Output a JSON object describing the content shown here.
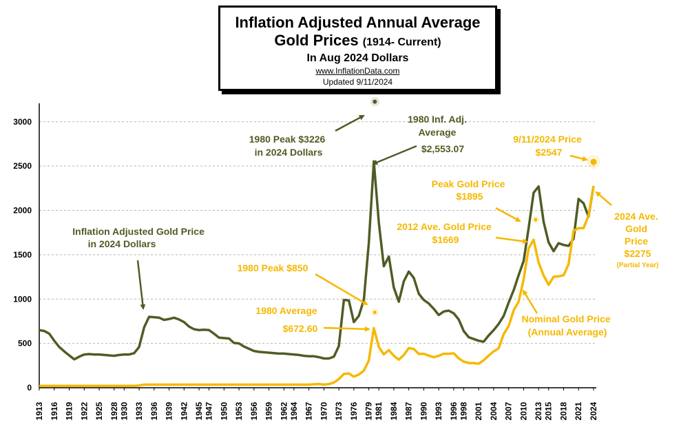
{
  "title": {
    "line1": "Inflation Adjusted Annual Average",
    "line2_main": "Gold Prices",
    "line2_paren": "(1914- Current)",
    "line3": "In Aug 2024 Dollars",
    "website": "www.InflationData.com",
    "updated": "Updated 9/11/2024"
  },
  "colors": {
    "adjusted": "#4e5d24",
    "nominal": "#f5b800",
    "grid": "#b5b5b5"
  },
  "chart_data": {
    "type": "line",
    "xlim": [
      1913,
      2024
    ],
    "ylim": [
      0,
      3200
    ],
    "yticks": [
      0,
      500,
      1000,
      1500,
      2000,
      2500,
      3000
    ],
    "xticks": [
      1913,
      1916,
      1919,
      1922,
      1925,
      1928,
      1930,
      1933,
      1936,
      1939,
      1942,
      1945,
      1947,
      1950,
      1953,
      1956,
      1959,
      1962,
      1964,
      1967,
      1970,
      1973,
      1976,
      1979,
      1981,
      1984,
      1987,
      1990,
      1993,
      1996,
      1998,
      2001,
      2004,
      2007,
      2010,
      2013,
      2015,
      2018,
      2021,
      2024
    ],
    "grid": true,
    "series": [
      {
        "key": "adjusted",
        "x": [
          1913,
          1914,
          1915,
          1916,
          1917,
          1918,
          1919,
          1920,
          1921,
          1922,
          1923,
          1924,
          1925,
          1926,
          1927,
          1928,
          1929,
          1930,
          1931,
          1932,
          1933,
          1934,
          1935,
          1936,
          1937,
          1938,
          1939,
          1940,
          1941,
          1942,
          1943,
          1944,
          1945,
          1946,
          1947,
          1948,
          1949,
          1950,
          1951,
          1952,
          1953,
          1954,
          1955,
          1956,
          1957,
          1958,
          1959,
          1960,
          1961,
          1962,
          1963,
          1964,
          1965,
          1966,
          1967,
          1968,
          1969,
          1970,
          1971,
          1972,
          1973,
          1974,
          1975,
          1976,
          1977,
          1978,
          1979,
          1980,
          1981,
          1982,
          1983,
          1984,
          1985,
          1986,
          1987,
          1988,
          1989,
          1990,
          1991,
          1992,
          1993,
          1994,
          1995,
          1996,
          1997,
          1998,
          1999,
          2000,
          2001,
          2002,
          2003,
          2004,
          2005,
          2006,
          2007,
          2008,
          2009,
          2010,
          2011,
          2012,
          2013,
          2014,
          2015,
          2016,
          2017,
          2018,
          2019,
          2020,
          2021,
          2022,
          2023,
          2024
        ],
        "y": [
          650,
          640,
          610,
          530,
          460,
          410,
          365,
          320,
          350,
          375,
          380,
          375,
          375,
          370,
          365,
          360,
          370,
          375,
          375,
          390,
          460,
          680,
          800,
          795,
          790,
          765,
          775,
          790,
          770,
          740,
          690,
          660,
          650,
          655,
          650,
          610,
          565,
          560,
          555,
          505,
          500,
          465,
          440,
          415,
          405,
          400,
          395,
          390,
          385,
          385,
          380,
          375,
          370,
          360,
          355,
          355,
          345,
          330,
          330,
          350,
          470,
          990,
          985,
          740,
          810,
          990,
          1630,
          2553,
          1860,
          1370,
          1480,
          1130,
          970,
          1200,
          1310,
          1240,
          1060,
          990,
          950,
          890,
          820,
          860,
          870,
          840,
          770,
          640,
          570,
          550,
          530,
          520,
          590,
          650,
          720,
          810,
          960,
          1100,
          1270,
          1430,
          1800,
          2200,
          2270,
          1870,
          1640,
          1540,
          1630,
          1610,
          1600,
          1680,
          2130,
          2080,
          1930,
          2275
        ]
      },
      {
        "key": "nominal",
        "x": [
          1913,
          1914,
          1915,
          1916,
          1917,
          1918,
          1919,
          1920,
          1921,
          1922,
          1923,
          1924,
          1925,
          1926,
          1927,
          1928,
          1929,
          1930,
          1931,
          1932,
          1933,
          1934,
          1935,
          1936,
          1937,
          1938,
          1939,
          1940,
          1941,
          1942,
          1943,
          1944,
          1945,
          1946,
          1947,
          1948,
          1949,
          1950,
          1951,
          1952,
          1953,
          1954,
          1955,
          1956,
          1957,
          1958,
          1959,
          1960,
          1961,
          1962,
          1963,
          1964,
          1965,
          1966,
          1967,
          1968,
          1969,
          1970,
          1971,
          1972,
          1973,
          1974,
          1975,
          1976,
          1977,
          1978,
          1979,
          1980,
          1981,
          1982,
          1983,
          1984,
          1985,
          1986,
          1987,
          1988,
          1989,
          1990,
          1991,
          1992,
          1993,
          1994,
          1995,
          1996,
          1997,
          1998,
          1999,
          2000,
          2001,
          2002,
          2003,
          2004,
          2005,
          2006,
          2007,
          2008,
          2009,
          2010,
          2011,
          2012,
          2013,
          2014,
          2015,
          2016,
          2017,
          2018,
          2019,
          2020,
          2021,
          2022,
          2023,
          2024
        ],
        "y": [
          21,
          21,
          21,
          21,
          21,
          21,
          21,
          21,
          21,
          21,
          21,
          21,
          21,
          21,
          21,
          21,
          21,
          21,
          21,
          21,
          26,
          35,
          35,
          35,
          35,
          35,
          35,
          35,
          35,
          35,
          35,
          35,
          35,
          35,
          35,
          35,
          35,
          35,
          35,
          35,
          35,
          35,
          35,
          35,
          35,
          35,
          35,
          35,
          35,
          35,
          35,
          35,
          35,
          35,
          35,
          39,
          42,
          36,
          41,
          59,
          98,
          155,
          161,
          125,
          148,
          193,
          307,
          673,
          460,
          376,
          424,
          361,
          317,
          368,
          447,
          437,
          381,
          383,
          362,
          344,
          360,
          384,
          384,
          388,
          331,
          294,
          279,
          279,
          271,
          310,
          363,
          410,
          445,
          604,
          696,
          872,
          972,
          1224,
          1572,
          1669,
          1411,
          1266,
          1160,
          1251,
          1257,
          1268,
          1393,
          1770,
          1800,
          1800,
          1943,
          2275
        ]
      }
    ],
    "annotations": {
      "adjusted_label": [
        "Inflation Adjusted Gold Price",
        "in 2024 Dollars"
      ],
      "peak_1980": [
        "1980 Peak $3226",
        "in 2024 Dollars"
      ],
      "avg_1980_adj": [
        "1980 Inf. Adj.",
        "Average",
        "$2,553.07"
      ],
      "price_2024": [
        "9/11/2024 Price",
        "$2547"
      ],
      "peak_gold": [
        "Peak Gold Price",
        "$1895"
      ],
      "ave_2012": [
        "2012 Ave. Gold Price",
        "$1669"
      ],
      "peak_1980_nominal": [
        "1980 Peak $850"
      ],
      "avg_1980_nominal": [
        "1980 Average",
        "$672.60"
      ],
      "nominal_label": [
        "Nominal Gold Price",
        "(Annual Average)"
      ],
      "ave_2024": [
        "2024 Ave.",
        "Gold",
        "Price",
        "$2275"
      ],
      "ave_2024_note": "(Partial Year)"
    }
  }
}
